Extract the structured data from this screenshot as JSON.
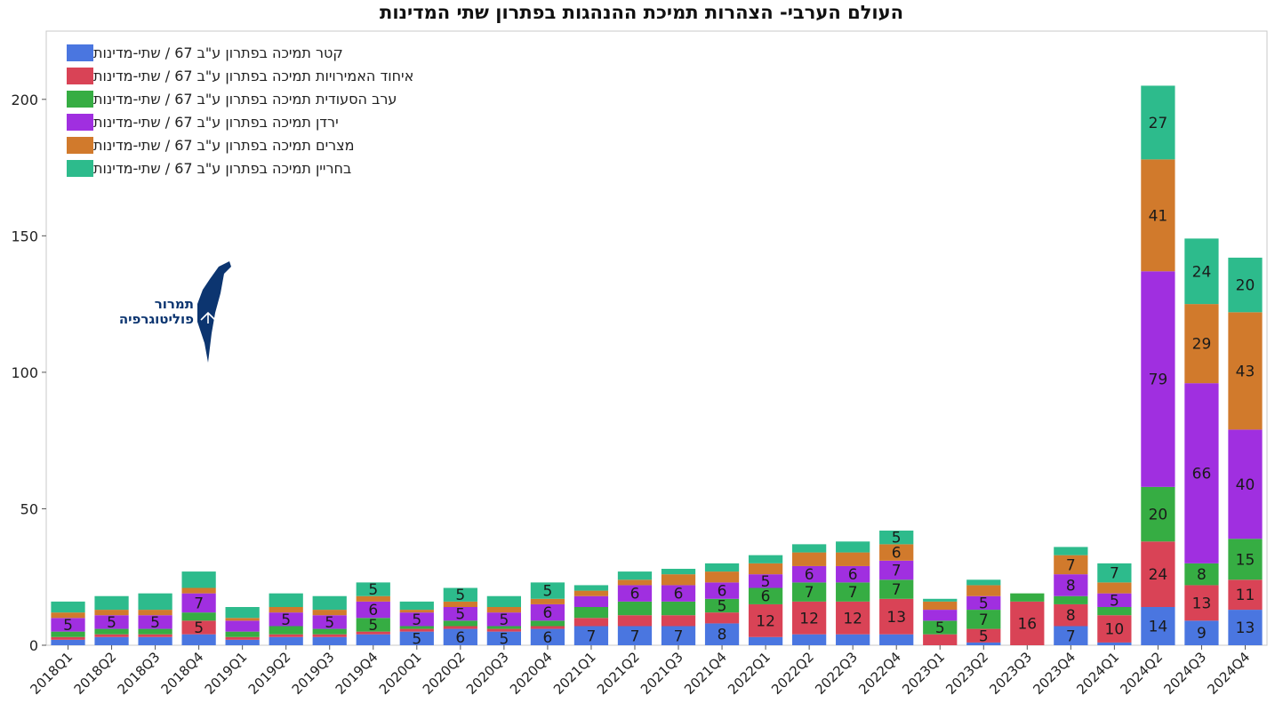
{
  "title": "העולם הערבי- הצהרות תמיכת ההנהגות בפתרון שתי המדינות",
  "logo": {
    "line1": "תמרור",
    "line2": "פוליטוגרפיה"
  },
  "chart_data": {
    "type": "bar",
    "stacked": true,
    "categories": [
      "2018Q1",
      "2018Q2",
      "2018Q3",
      "2018Q4",
      "2019Q1",
      "2019Q2",
      "2019Q3",
      "2019Q4",
      "2020Q1",
      "2020Q2",
      "2020Q3",
      "2020Q4",
      "2021Q1",
      "2021Q2",
      "2021Q3",
      "2021Q4",
      "2022Q1",
      "2022Q2",
      "2022Q3",
      "2022Q4",
      "2023Q1",
      "2023Q2",
      "2023Q3",
      "2023Q4",
      "2024Q1",
      "2024Q2",
      "2024Q3",
      "2024Q4"
    ],
    "ylim": [
      0,
      225
    ],
    "yticks": [
      0,
      50,
      100,
      150,
      200
    ],
    "grid": false,
    "legend_position": "top-left",
    "series": [
      {
        "name": "קטר תמיכה בפתרון ע\"ב 67 / שתי-מדינות",
        "color": "#4a76e0",
        "values": [
          2,
          3,
          3,
          4,
          2,
          3,
          3,
          4,
          5,
          6,
          5,
          6,
          7,
          7,
          7,
          8,
          3,
          4,
          4,
          4,
          0,
          1,
          0,
          7,
          1,
          14,
          9,
          13
        ]
      },
      {
        "name": "איחוד האמירויות תמיכה בפתרון ע\"ב 67 / שתי-מדינות",
        "color": "#d94356",
        "values": [
          1,
          1,
          1,
          5,
          1,
          1,
          1,
          1,
          1,
          1,
          1,
          1,
          3,
          4,
          4,
          4,
          12,
          12,
          12,
          13,
          4,
          5,
          16,
          8,
          10,
          24,
          13,
          11
        ]
      },
      {
        "name": "ערב הסעודית תמיכה בפתרון ע\"ב 67 / שתי-מדינות",
        "color": "#36ad43",
        "values": [
          2,
          2,
          2,
          3,
          2,
          3,
          2,
          5,
          1,
          2,
          1,
          2,
          4,
          5,
          5,
          5,
          6,
          7,
          7,
          7,
          5,
          7,
          3,
          3,
          3,
          20,
          8,
          15
        ]
      },
      {
        "name": "ירדן תמיכה בפתרון ע\"ב 67 / שתי-מדינות",
        "color": "#a02fe0",
        "values": [
          5,
          5,
          5,
          7,
          4,
          5,
          5,
          6,
          5,
          5,
          5,
          6,
          4,
          6,
          6,
          6,
          5,
          6,
          6,
          7,
          4,
          5,
          0,
          8,
          5,
          79,
          66,
          40
        ]
      },
      {
        "name": "מצרים תמיכה בפתרון ע\"ב 67 / שתי-מדינות",
        "color": "#d17a2c",
        "values": [
          2,
          2,
          2,
          2,
          1,
          2,
          2,
          2,
          1,
          2,
          2,
          2,
          2,
          2,
          4,
          4,
          4,
          5,
          5,
          6,
          3,
          4,
          0,
          7,
          4,
          41,
          29,
          43
        ]
      },
      {
        "name": "בחריין תמיכה בפתרון ע\"ב 67 / שתי-מדינות",
        "color": "#2dbb8c",
        "values": [
          4,
          5,
          6,
          6,
          4,
          5,
          5,
          5,
          3,
          5,
          4,
          6,
          2,
          3,
          2,
          3,
          3,
          3,
          4,
          5,
          1,
          2,
          0,
          3,
          7,
          27,
          24,
          20
        ]
      }
    ],
    "data_labels": [
      {
        "category": "2018Q1",
        "series": 3,
        "text": "5"
      },
      {
        "category": "2018Q2",
        "series": 3,
        "text": "5"
      },
      {
        "category": "2018Q3",
        "series": 3,
        "text": "5"
      },
      {
        "category": "2018Q4",
        "series": 1,
        "text": "5"
      },
      {
        "category": "2018Q4",
        "series": 3,
        "text": "7"
      },
      {
        "category": "2019Q2",
        "series": 3,
        "text": "5"
      },
      {
        "category": "2019Q3",
        "series": 3,
        "text": "5"
      },
      {
        "category": "2019Q4",
        "series": 2,
        "text": "5"
      },
      {
        "category": "2019Q4",
        "series": 3,
        "text": "6"
      },
      {
        "category": "2019Q4",
        "series": 5,
        "text": "5"
      },
      {
        "category": "2020Q1",
        "series": 0,
        "text": "5"
      },
      {
        "category": "2020Q1",
        "series": 3,
        "text": "5"
      },
      {
        "category": "2020Q2",
        "series": 0,
        "text": "6"
      },
      {
        "category": "2020Q2",
        "series": 3,
        "text": "5"
      },
      {
        "category": "2020Q2",
        "series": 5,
        "text": "5"
      },
      {
        "category": "2020Q3",
        "series": 0,
        "text": "5"
      },
      {
        "category": "2020Q3",
        "series": 3,
        "text": "5"
      },
      {
        "category": "2020Q4",
        "series": 0,
        "text": "6"
      },
      {
        "category": "2020Q4",
        "series": 3,
        "text": "6"
      },
      {
        "category": "2020Q4",
        "series": 5,
        "text": "5"
      },
      {
        "category": "2021Q1",
        "series": 0,
        "text": "7"
      },
      {
        "category": "2021Q2",
        "series": 0,
        "text": "7"
      },
      {
        "category": "2021Q2",
        "series": 3,
        "text": "6"
      },
      {
        "category": "2021Q3",
        "series": 0,
        "text": "7"
      },
      {
        "category": "2021Q3",
        "series": 3,
        "text": "6"
      },
      {
        "category": "2021Q4",
        "series": 0,
        "text": "8"
      },
      {
        "category": "2021Q4",
        "series": 2,
        "text": "5"
      },
      {
        "category": "2021Q4",
        "series": 3,
        "text": "6"
      },
      {
        "category": "2022Q1",
        "series": 1,
        "text": "12"
      },
      {
        "category": "2022Q1",
        "series": 2,
        "text": "6"
      },
      {
        "category": "2022Q1",
        "series": 3,
        "text": "5"
      },
      {
        "category": "2022Q2",
        "series": 1,
        "text": "12"
      },
      {
        "category": "2022Q2",
        "series": 2,
        "text": "7"
      },
      {
        "category": "2022Q2",
        "series": 3,
        "text": "6"
      },
      {
        "category": "2022Q3",
        "series": 1,
        "text": "12"
      },
      {
        "category": "2022Q3",
        "series": 2,
        "text": "7"
      },
      {
        "category": "2022Q3",
        "series": 3,
        "text": "6"
      },
      {
        "category": "2022Q4",
        "series": 1,
        "text": "13"
      },
      {
        "category": "2022Q4",
        "series": 2,
        "text": "7"
      },
      {
        "category": "2022Q4",
        "series": 3,
        "text": "7"
      },
      {
        "category": "2022Q4",
        "series": 4,
        "text": "6"
      },
      {
        "category": "2022Q4",
        "series": 5,
        "text": "5"
      },
      {
        "category": "2023Q1",
        "series": 2,
        "text": "5"
      },
      {
        "category": "2023Q2",
        "series": 1,
        "text": "5"
      },
      {
        "category": "2023Q2",
        "series": 2,
        "text": "7"
      },
      {
        "category": "2023Q2",
        "series": 3,
        "text": "5"
      },
      {
        "category": "2023Q3",
        "series": 1,
        "text": "16"
      },
      {
        "category": "2023Q4",
        "series": 0,
        "text": "7"
      },
      {
        "category": "2023Q4",
        "series": 1,
        "text": "8"
      },
      {
        "category": "2023Q4",
        "series": 3,
        "text": "8"
      },
      {
        "category": "2023Q4",
        "series": 4,
        "text": "7"
      },
      {
        "category": "2024Q1",
        "series": 1,
        "text": "10"
      },
      {
        "category": "2024Q1",
        "series": 3,
        "text": "5"
      },
      {
        "category": "2024Q1",
        "series": 5,
        "text": "7"
      },
      {
        "category": "2024Q2",
        "series": 0,
        "text": "14"
      },
      {
        "category": "2024Q2",
        "series": 1,
        "text": "24"
      },
      {
        "category": "2024Q2",
        "series": 2,
        "text": "20"
      },
      {
        "category": "2024Q2",
        "series": 3,
        "text": "79"
      },
      {
        "category": "2024Q2",
        "series": 4,
        "text": "41"
      },
      {
        "category": "2024Q2",
        "series": 5,
        "text": "27"
      },
      {
        "category": "2024Q3",
        "series": 0,
        "text": "9"
      },
      {
        "category": "2024Q3",
        "series": 1,
        "text": "13"
      },
      {
        "category": "2024Q3",
        "series": 2,
        "text": "8"
      },
      {
        "category": "2024Q3",
        "series": 3,
        "text": "66"
      },
      {
        "category": "2024Q3",
        "series": 4,
        "text": "29"
      },
      {
        "category": "2024Q3",
        "series": 5,
        "text": "24"
      },
      {
        "category": "2024Q4",
        "series": 0,
        "text": "13"
      },
      {
        "category": "2024Q4",
        "series": 1,
        "text": "11"
      },
      {
        "category": "2024Q4",
        "series": 2,
        "text": "15"
      },
      {
        "category": "2024Q4",
        "series": 3,
        "text": "40"
      },
      {
        "category": "2024Q4",
        "series": 4,
        "text": "43"
      },
      {
        "category": "2024Q4",
        "series": 5,
        "text": "20"
      }
    ]
  }
}
